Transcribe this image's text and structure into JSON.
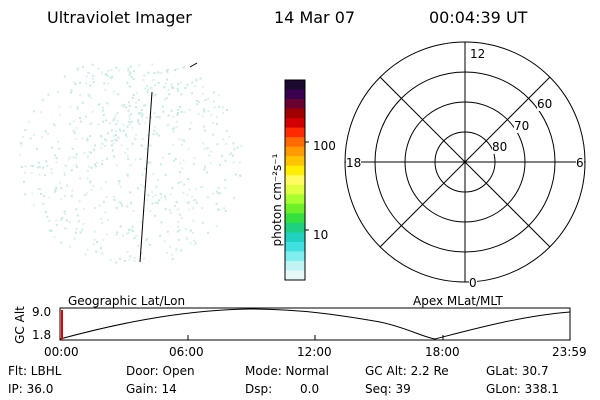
{
  "header": {
    "instrument": "Ultraviolet Imager",
    "date": "14 Mar 07",
    "time": "00:04:39 UT"
  },
  "colorbar": {
    "unit_label": "photon cm⁻²s⁻¹",
    "tick_100": "100",
    "tick_10": "10",
    "colors": [
      "#1a0a2e",
      "#3a0050",
      "#6a0030",
      "#a00000",
      "#d00000",
      "#ff2a00",
      "#ff6a00",
      "#ff9a00",
      "#ffc400",
      "#ffee00",
      "#fffb60",
      "#e0ff40",
      "#a8ff30",
      "#6cf028",
      "#34e040",
      "#1ed080",
      "#20d0c0",
      "#40e0e0",
      "#80eeee",
      "#c0f4f4",
      "#e8f8f8"
    ]
  },
  "polar": {
    "mlt_12": "12",
    "mlt_18": "18",
    "mlt_6": "6",
    "mlt_0": "0",
    "lat_60": "60",
    "lat_70": "70",
    "lat_80": "80"
  },
  "timeline": {
    "axis_label": "GC Alt",
    "y_top": "9.0",
    "y_bottom": "1.8",
    "geo_label": "Geographic Lat/Lon",
    "apex_label": "Apex  MLat/MLT",
    "ticks": [
      "00:00",
      "06:00",
      "12:00",
      "18:00",
      "23:59"
    ]
  },
  "status": {
    "flt": "Flt: LBHL",
    "ip": "IP: 36.0",
    "door": "Door: Open",
    "gain": "Gain: 14",
    "mode": "Mode: Normal",
    "dsp_label": "Dsp:",
    "dsp_value": "0.0",
    "gcalt": "GC Alt: 2.2 Re",
    "seq": "Seq: 39",
    "glat": "GLat:  30.7",
    "glon": "GLon: 338.1"
  }
}
